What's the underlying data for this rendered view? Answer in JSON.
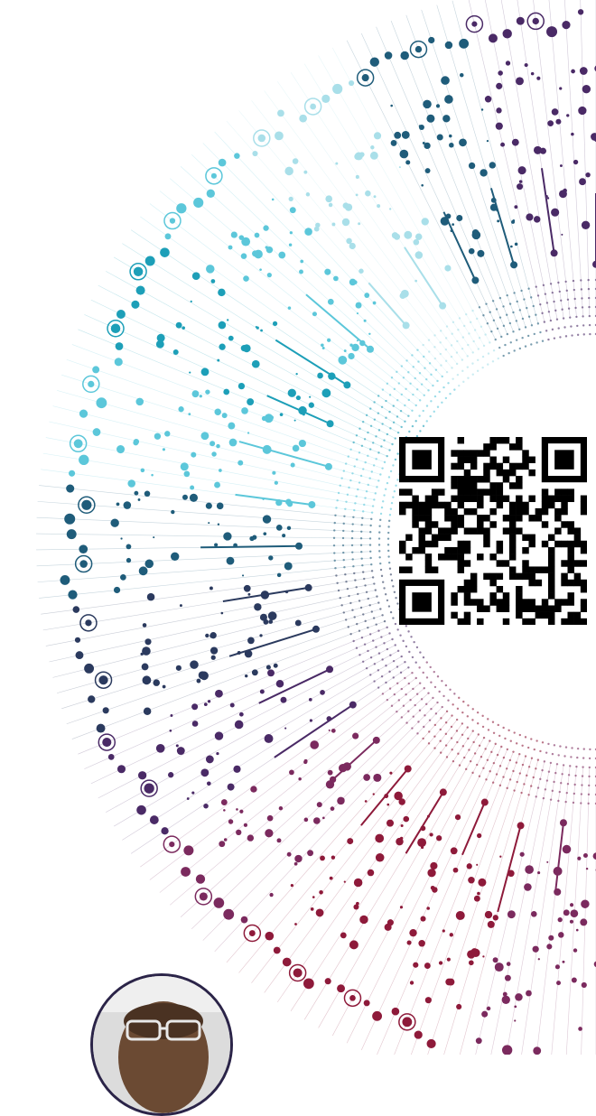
{
  "visualization": {
    "type": "radial-dot-burst",
    "palette": [
      "#1d9fb8",
      "#5cc7da",
      "#a9dfe9",
      "#1f5c7a",
      "#2b3a5e",
      "#4a2a66",
      "#7b2a5e",
      "#8e1a3a",
      "#c0202f",
      "#e0571f",
      "#e2981a"
    ],
    "description_shown": false
  },
  "qr_code": {
    "icon": "qr-code-icon"
  },
  "avatar": {
    "icon": "person-avatar-icon"
  }
}
